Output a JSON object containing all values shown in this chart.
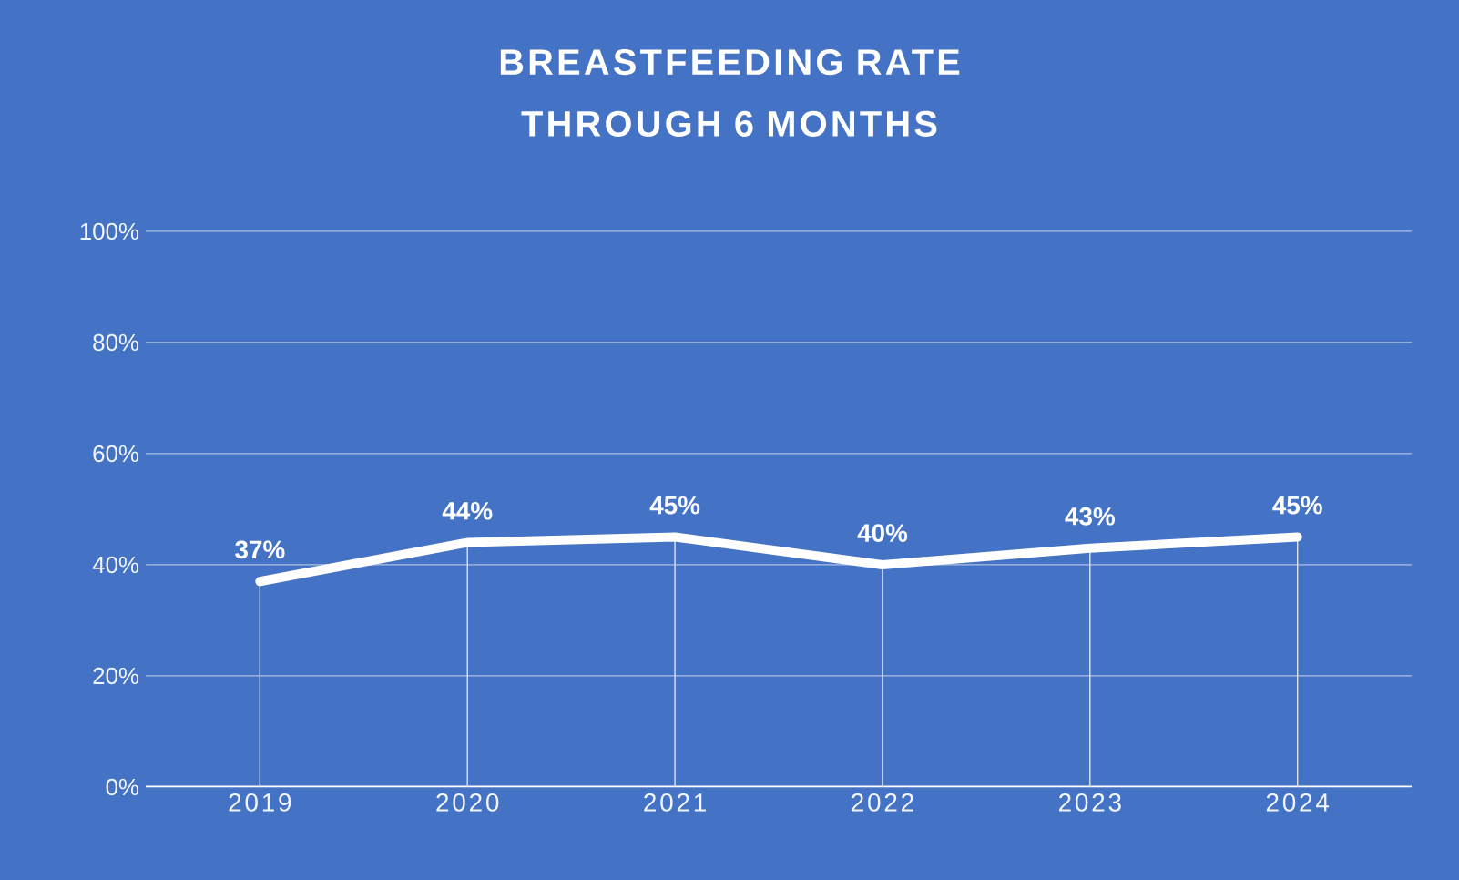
{
  "chart_data": {
    "type": "line",
    "title": "BREASTFEEDING RATE THROUGH 6 MONTHS",
    "categories": [
      "2019",
      "2020",
      "2021",
      "2022",
      "2023",
      "2024"
    ],
    "series": [
      {
        "color": "#ffffff",
        "values": [
          37,
          44,
          45,
          40,
          43,
          45
        ],
        "value_labels": [
          "37%",
          "44%",
          "45%",
          "40%",
          "43%",
          "45%"
        ]
      }
    ],
    "ylim": [
      0,
      100
    ],
    "yticks": [
      {
        "value": 0,
        "label": "0%"
      },
      {
        "value": 20,
        "label": "20%"
      },
      {
        "value": 40,
        "label": "40%"
      },
      {
        "value": 60,
        "label": "60%"
      },
      {
        "value": 80,
        "label": "80%"
      },
      {
        "value": 100,
        "label": "100%"
      }
    ],
    "grid": "y",
    "marker": "none",
    "line_style": "solid"
  }
}
